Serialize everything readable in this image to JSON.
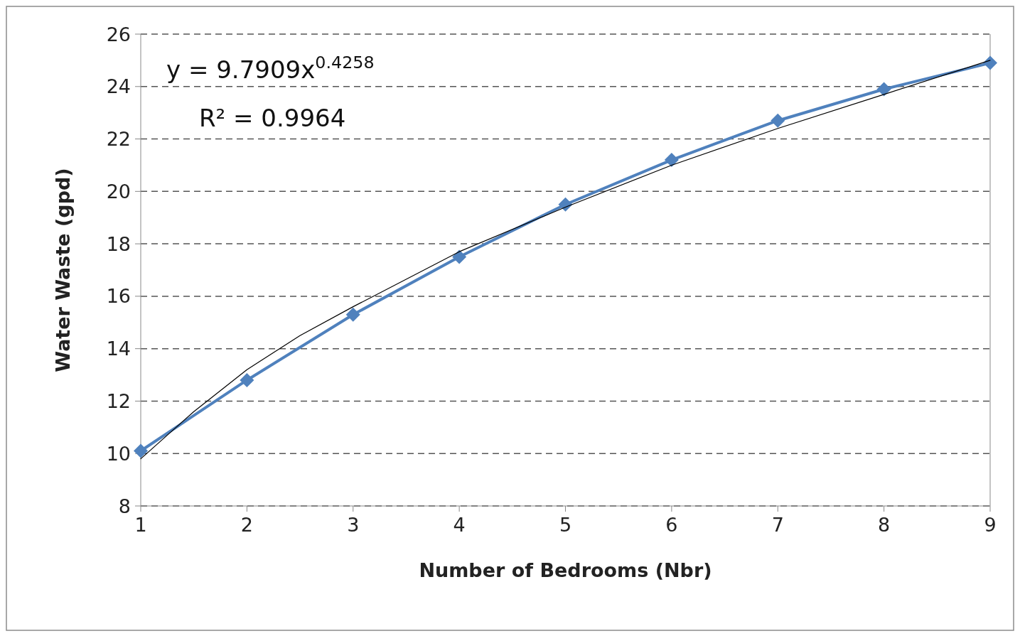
{
  "chart_data": {
    "type": "line",
    "xlabel": "Number of Bedrooms (Nbr)",
    "ylabel": "Water Waste (gpd)",
    "x": [
      1,
      2,
      3,
      4,
      5,
      6,
      7,
      8,
      9
    ],
    "series": [
      {
        "color": "#4f81bd",
        "values": [
          10.1,
          12.8,
          15.3,
          17.5,
          19.5,
          21.2,
          22.7,
          23.9,
          24.9
        ],
        "marker": "diamond"
      },
      {
        "type": "line",
        "color": "#000000",
        "marker": "none",
        "x": [
          1,
          1.5,
          2,
          2.5,
          3,
          4,
          5,
          6,
          7,
          8,
          9
        ],
        "values": [
          9.8,
          11.6,
          13.2,
          14.5,
          15.6,
          17.7,
          19.4,
          21.0,
          22.4,
          23.7,
          25.0
        ]
      }
    ],
    "xlim": [
      1,
      9
    ],
    "xticks": [
      1,
      2,
      3,
      4,
      5,
      6,
      7,
      8,
      9
    ],
    "ylim": [
      8,
      26
    ],
    "yticks": [
      8,
      10,
      12,
      14,
      16,
      18,
      20,
      22,
      24,
      26
    ],
    "grid": "y",
    "annotations": [
      "y = 9.7909x$^{0.4258}$",
      "R² = 0.9964"
    ]
  }
}
